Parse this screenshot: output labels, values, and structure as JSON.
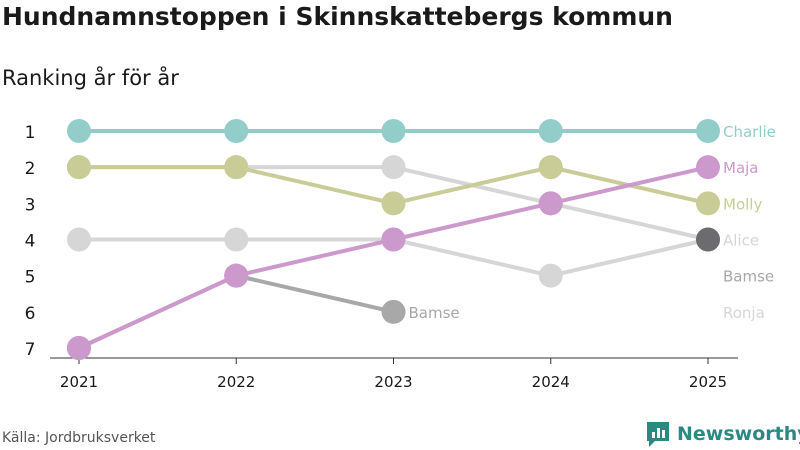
{
  "title": "Hundnamnstoppen i Skinnskattebergs kommun",
  "subtitle": "Ranking år för år",
  "source": "Källa: Jordbruksverket",
  "brand": "Newsworthy",
  "chart_data": {
    "type": "line",
    "subtype": "bump",
    "x": [
      "2021",
      "2022",
      "2023",
      "2024",
      "2025"
    ],
    "y_ticks": [
      1,
      2,
      3,
      4,
      5,
      6,
      7
    ],
    "y_direction": "inverted",
    "series": [
      {
        "name": "Charlie",
        "color": "#93cdc9",
        "ranks": [
          1,
          1,
          1,
          1,
          1
        ]
      },
      {
        "name": "Maja",
        "color": "#cc99cc",
        "ranks": [
          7,
          5,
          4,
          3,
          2
        ]
      },
      {
        "name": "Molly",
        "color": "#c9cc96",
        "ranks": [
          2,
          2,
          3,
          2,
          3
        ]
      },
      {
        "name": "Alice",
        "color": "#d6d6d6",
        "ranks": [
          4,
          4,
          4,
          5,
          4
        ]
      },
      {
        "name": "Bamse",
        "color": "#a8a8a8",
        "ranks": [
          7,
          5,
          6,
          null,
          null
        ]
      },
      {
        "name": "Ronja",
        "color": "#d6d6d6",
        "ranks": [
          2,
          2,
          2,
          3,
          4
        ]
      }
    ],
    "end_labels": [
      {
        "name": "Charlie",
        "color": "#93cdc9",
        "rank": 1
      },
      {
        "name": "Maja",
        "color": "#cc99cc",
        "rank": 2
      },
      {
        "name": "Molly",
        "color": "#c9cc96",
        "rank": 3
      },
      {
        "name": "Alice",
        "color": "#d6d6d6",
        "rank": 4
      },
      {
        "name": "Bamse",
        "color": "#a8a8a8",
        "rank": 5
      },
      {
        "name": "Ronja",
        "color": "#d6d6d6",
        "rank": 6
      }
    ],
    "inline_labels": [
      {
        "name": "Bamse",
        "color": "#a8a8a8",
        "x": "2023",
        "rank": 6
      }
    ],
    "end_dot": {
      "x": "2025",
      "rank": 4,
      "color": "#6b6b70"
    }
  }
}
